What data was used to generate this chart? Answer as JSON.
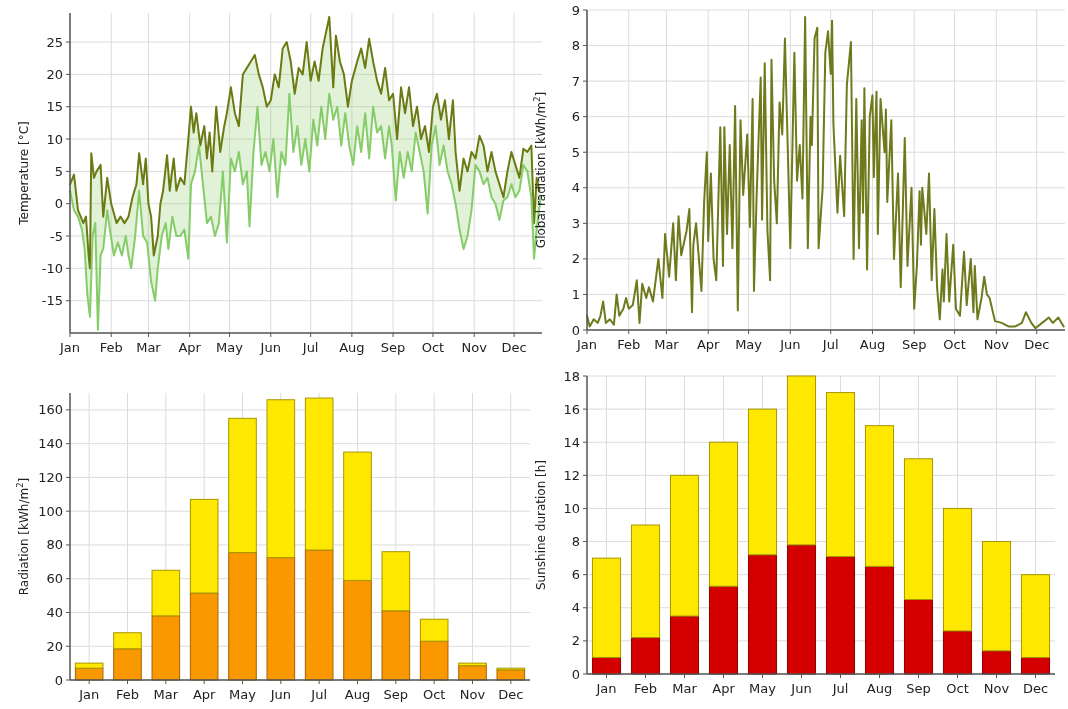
{
  "chart_data": [
    {
      "type": "line",
      "ylabel": "Temperature [°C]",
      "xlim": [
        "--01-01",
        "--12-22"
      ],
      "ylim": [
        -20,
        29.5
      ],
      "yticks": [
        -15,
        -10,
        -5,
        0,
        5,
        10,
        15,
        20,
        25
      ],
      "grid": true,
      "xticks": [
        {
          "value": "--01-01",
          "label": "Jan"
        },
        {
          "value": "--02-01",
          "label": "Feb"
        },
        {
          "value": "--03-01",
          "label": "Mar"
        },
        {
          "value": "--04-01",
          "label": "Apr"
        },
        {
          "value": "--05-01",
          "label": "May"
        },
        {
          "value": "--06-01",
          "label": "Jun"
        },
        {
          "value": "--07-01",
          "label": "Jul"
        },
        {
          "value": "--08-01",
          "label": "Aug"
        },
        {
          "value": "--09-01",
          "label": "Sep"
        },
        {
          "value": "--10-01",
          "label": "Oct"
        },
        {
          "value": "--11-01",
          "label": "Nov"
        },
        {
          "value": "--12-01",
          "label": "Dec"
        }
      ],
      "series": [
        {
          "color": "#6b7a12",
          "x": [
            "--01-01",
            "--01-04",
            "--01-07",
            "--01-11",
            "--01-13",
            "--01-15",
            "--01-16",
            "--01-17",
            "--01-19",
            "--01-21",
            "--01-24",
            "--01-26",
            "--01-29",
            "--02-01",
            "--02-05",
            "--02-08",
            "--02-11",
            "--02-14",
            "--02-17",
            "--02-20",
            "--02-22",
            "--02-25",
            "--02-27",
            "--03-01",
            "--03-03",
            "--03-05",
            "--03-08",
            "--03-10",
            "--03-12",
            "--03-15",
            "--03-17",
            "--03-20",
            "--03-22",
            "--03-25",
            "--03-28",
            "--03-31",
            "--04-02",
            "--04-04",
            "--04-06",
            "--04-09",
            "--04-12",
            "--04-14",
            "--04-16",
            "--04-18",
            "--04-21",
            "--04-24",
            "--04-27",
            "--04-29",
            "--05-02",
            "--05-05",
            "--05-08",
            "--05-11",
            "--05-14",
            "--05-17",
            "--05-20",
            "--05-23",
            "--05-26",
            "--05-29",
            "--06-01",
            "--06-04",
            "--06-07",
            "--06-10",
            "--06-13",
            "--06-16",
            "--06-19",
            "--06-22",
            "--06-25",
            "--06-28",
            "--07-01",
            "--07-04",
            "--07-07",
            "--07-10",
            "--07-15",
            "--07-18",
            "--07-20",
            "--07-23",
            "--07-26",
            "--07-29",
            "--08-01",
            "--08-05",
            "--08-08",
            "--08-11",
            "--08-14",
            "--08-17",
            "--08-20",
            "--08-23",
            "--08-26",
            "--08-29",
            "--09-01",
            "--09-04",
            "--09-07",
            "--09-10",
            "--09-13",
            "--09-16",
            "--09-19",
            "--09-22",
            "--09-25",
            "--09-28",
            "--10-01",
            "--10-04",
            "--10-07",
            "--10-10",
            "--10-13",
            "--10-16",
            "--10-18",
            "--10-21",
            "--10-24",
            "--10-27",
            "--10-30",
            "--11-02",
            "--11-05",
            "--11-08",
            "--11-11",
            "--11-14",
            "--11-17",
            "--11-20",
            "--11-23",
            "--11-26",
            "--11-29",
            "--12-02",
            "--12-05",
            "--12-08",
            "--12-11",
            "--12-14",
            "--12-16",
            "--12-18",
            "--12-20"
          ],
          "values": [
            3,
            4.5,
            -1,
            -3,
            -2,
            -8,
            -10,
            7.8,
            4,
            5,
            6,
            -2,
            4,
            0,
            -3,
            -2,
            -3,
            -2,
            1,
            3,
            7.8,
            3,
            7,
            0,
            -2,
            -8,
            -5,
            0,
            2,
            7.5,
            2,
            7,
            2,
            4,
            3,
            10,
            15,
            11,
            14,
            9,
            12,
            7,
            11,
            5,
            15,
            8,
            12,
            14,
            18,
            14,
            12,
            20,
            21,
            22,
            23,
            20,
            18,
            15,
            16,
            20,
            18,
            24,
            25,
            22,
            17,
            21,
            20,
            25,
            19,
            22,
            19,
            24,
            28.9,
            18,
            26,
            22,
            20,
            15,
            19,
            22,
            24,
            21,
            25.5,
            22,
            19,
            17,
            21,
            16,
            17,
            10,
            18,
            14,
            18,
            12,
            15,
            10,
            12,
            8,
            15,
            17,
            13,
            16,
            10,
            16,
            8,
            2,
            7,
            5,
            8,
            7,
            10.5,
            9,
            5,
            8,
            5,
            3,
            1,
            5,
            8,
            6,
            4,
            8.5,
            8,
            9,
            -3,
            4,
            2
          ]
        },
        {
          "color": "#86cc68",
          "x": [
            "--01-01",
            "--01-04",
            "--01-07",
            "--01-10",
            "--01-12",
            "--01-14",
            "--01-16",
            "--01-18",
            "--01-20",
            "--01-22",
            "--01-24",
            "--01-26",
            "--01-29",
            "--01-31",
            "--02-03",
            "--02-06",
            "--02-09",
            "--02-12",
            "--02-14",
            "--02-16",
            "--02-19",
            "--02-22",
            "--02-25",
            "--02-28",
            "--03-03",
            "--03-06",
            "--03-08",
            "--03-11",
            "--03-14",
            "--03-16",
            "--03-19",
            "--03-22",
            "--03-25",
            "--03-28",
            "--03-31",
            "--04-02",
            "--04-05",
            "--04-08",
            "--04-11",
            "--04-14",
            "--04-17",
            "--04-20",
            "--04-23",
            "--04-26",
            "--04-29",
            "--05-02",
            "--05-05",
            "--05-08",
            "--05-11",
            "--05-14",
            "--05-16",
            "--05-19",
            "--05-22",
            "--05-25",
            "--05-28",
            "--05-31",
            "--06-03",
            "--06-06",
            "--06-09",
            "--06-12",
            "--06-15",
            "--06-18",
            "--06-21",
            "--06-24",
            "--06-27",
            "--06-30",
            "--07-03",
            "--07-06",
            "--07-09",
            "--07-12",
            "--07-15",
            "--07-18",
            "--07-21",
            "--07-24",
            "--07-27",
            "--07-30",
            "--08-02",
            "--08-05",
            "--08-08",
            "--08-11",
            "--08-14",
            "--08-17",
            "--08-20",
            "--08-23",
            "--08-26",
            "--08-29",
            "--08-31",
            "--09-03",
            "--09-06",
            "--09-09",
            "--09-12",
            "--09-15",
            "--09-18",
            "--09-21",
            "--09-24",
            "--09-27",
            "--09-30",
            "--10-03",
            "--10-06",
            "--10-09",
            "--10-12",
            "--10-15",
            "--10-18",
            "--10-21",
            "--10-24",
            "--10-27",
            "--10-30",
            "--11-02",
            "--11-05",
            "--11-08",
            "--11-11",
            "--11-14",
            "--11-17",
            "--11-20",
            "--11-23",
            "--11-26",
            "--11-29",
            "--12-02",
            "--12-05",
            "--12-08",
            "--12-11",
            "--12-14",
            "--12-16",
            "--12-18",
            "--12-21"
          ],
          "values": [
            2,
            -1,
            -2,
            -4,
            -7,
            -14,
            -17.5,
            -5,
            -3,
            -19.5,
            -8,
            -7,
            -1,
            -4,
            -8,
            -6,
            -8,
            -5,
            -8,
            -10,
            -5,
            2,
            -5,
            -6,
            -12,
            -15,
            -10,
            -5,
            -3,
            -7,
            -2,
            -5,
            -5,
            -4,
            -8.5,
            3,
            5,
            9,
            3,
            -3,
            -2,
            -5,
            -3,
            5,
            -6,
            7,
            5,
            8,
            3,
            5,
            -3.5,
            8,
            15,
            6,
            8,
            5,
            10,
            1,
            8,
            6,
            17,
            8,
            12,
            6,
            10,
            5,
            13,
            9,
            15,
            10,
            17,
            13,
            15,
            9,
            14,
            9,
            6,
            12,
            8,
            14,
            7,
            15,
            11,
            12,
            7,
            12,
            9,
            0.5,
            8,
            4,
            8,
            5,
            11,
            8,
            5,
            -1.5,
            9,
            12,
            6,
            9,
            5,
            3,
            0,
            -4,
            -7,
            -5,
            -1,
            6,
            5,
            3,
            4,
            1,
            0,
            -2.5,
            0.5,
            1,
            3,
            1,
            2,
            6,
            5,
            1,
            -8.5,
            -4,
            1
          ],
          "lower": [
            2,
            -1,
            -2,
            -4,
            -7,
            -14,
            -17.5,
            -5,
            -3,
            -19.5,
            -8,
            -7,
            -1,
            -4,
            -8,
            -6,
            -8,
            -5,
            -8,
            -10,
            -5,
            2,
            -5,
            -6,
            -12,
            -15,
            -10,
            -5,
            -3,
            -7,
            -2,
            -5,
            -5,
            -4,
            -8.5,
            3,
            5,
            9,
            3,
            -3,
            -2,
            -5,
            -3,
            5,
            -6,
            7,
            5,
            8,
            3,
            5,
            -3.5,
            8,
            15,
            6,
            8,
            5,
            10,
            1,
            8,
            6,
            17,
            8,
            12,
            6,
            10,
            5,
            13,
            9,
            15,
            10,
            17,
            13,
            15,
            9,
            14,
            9,
            6,
            12,
            8,
            14,
            7,
            15,
            11,
            12,
            7,
            12,
            9,
            0.5,
            8,
            4,
            8,
            5,
            11,
            8,
            5,
            -1.5,
            9,
            12,
            6,
            9,
            5,
            3,
            0,
            -4,
            -7,
            -5,
            -1,
            6,
            5,
            3,
            4,
            1,
            0,
            -2.5,
            0.5,
            1,
            3,
            1,
            2,
            6,
            5,
            1,
            -8.5,
            -4,
            1
          ],
          "upper": [
            3,
            4.5,
            -1,
            -3,
            -2.5,
            -5,
            -10,
            6,
            4.5,
            5.5,
            6,
            -2,
            4,
            1,
            -1.5,
            -2.5,
            -2.5,
            -2.5,
            -2,
            0,
            2.5,
            7.8,
            3,
            3.5,
            -2,
            -6.5,
            -5,
            1,
            5.5,
            4.5,
            5,
            2,
            4,
            3,
            10,
            15,
            12.5,
            10.5,
            11,
            7,
            8,
            11.5,
            10,
            11,
            14,
            18,
            14,
            12,
            20,
            21,
            21.5,
            22.5,
            21,
            18.5,
            16,
            15.5,
            18.5,
            18.5,
            22,
            24.5,
            23,
            19,
            20,
            20.5,
            23.5,
            21,
            21,
            20,
            22.5,
            26,
            28.9,
            18,
            24.5,
            21.5,
            18.5,
            16.5,
            20,
            22,
            24,
            21,
            25.5,
            22,
            19,
            17,
            21,
            16,
            16.5,
            12.5,
            15.5,
            15.5,
            16.5,
            14,
            14,
            11.5,
            11.5,
            9.5,
            12.5,
            16.5,
            14.5,
            15,
            12,
            14,
            8,
            2,
            7,
            5,
            8,
            7,
            10.5,
            9,
            5,
            8,
            5,
            3,
            1,
            5,
            8,
            6,
            4,
            8.5,
            8,
            9,
            -3,
            4,
            2
          ]
        }
      ]
    },
    {
      "type": "line",
      "ylabel": "Global radiation [kWh/m$^{2}$]",
      "xlim": [
        "--01-01",
        "--12-22"
      ],
      "ylim": [
        0,
        9
      ],
      "yticks": [
        0,
        1,
        2,
        3,
        4,
        5,
        6,
        7,
        8,
        9
      ],
      "grid": true,
      "xticks": [
        {
          "value": "--01-01",
          "label": "Jan"
        },
        {
          "value": "--02-01",
          "label": "Feb"
        },
        {
          "value": "--03-01",
          "label": "Mar"
        },
        {
          "value": "--04-01",
          "label": "Apr"
        },
        {
          "value": "--05-01",
          "label": "May"
        },
        {
          "value": "--06-01",
          "label": "Jun"
        },
        {
          "value": "--07-01",
          "label": "Jul"
        },
        {
          "value": "--08-01",
          "label": "Aug"
        },
        {
          "value": "--09-01",
          "label": "Sep"
        },
        {
          "value": "--10-01",
          "label": "Oct"
        },
        {
          "value": "--11-01",
          "label": "Nov"
        },
        {
          "value": "--12-01",
          "label": "Dec"
        }
      ],
      "series": [
        {
          "color": "#6e7a1c",
          "x": [
            "--01-01",
            "--01-03",
            "--01-06",
            "--01-09",
            "--01-11",
            "--01-13",
            "--01-15",
            "--01-18",
            "--01-21",
            "--01-23",
            "--01-25",
            "--01-28",
            "--01-30",
            "--02-01",
            "--02-04",
            "--02-07",
            "--02-09",
            "--02-11",
            "--02-14",
            "--02-16",
            "--02-19",
            "--02-23",
            "--02-26",
            "--02-28",
            "--03-03",
            "--03-06",
            "--03-08",
            "--03-10",
            "--03-12",
            "--03-16",
            "--03-18",
            "--03-20",
            "--03-21",
            "--03-23",
            "--03-27",
            "--03-29",
            "--03-31",
            "--04-01",
            "--04-03",
            "--04-05",
            "--04-07",
            "--04-10",
            "--04-12",
            "--04-13",
            "--04-15",
            "--04-17",
            "--04-19",
            "--04-21",
            "--04-23",
            "--04-25",
            "--04-27",
            "--04-30",
            "--05-02",
            "--05-04",
            "--05-05",
            "--05-07",
            "--05-10",
            "--05-11",
            "--05-13",
            "--05-15",
            "--05-17",
            "--05-18",
            "--05-20",
            "--05-22",
            "--05-24",
            "--05-26",
            "--05-28",
            "--06-01",
            "--06-04",
            "--06-06",
            "--06-08",
            "--06-10",
            "--06-12",
            "--06-14",
            "--06-16",
            "--06-17",
            "--06-19",
            "--06-21",
            "--06-22",
            "--06-25",
            "--06-27",
            "--06-29",
            "--07-01",
            "--07-02",
            "--07-03",
            "--07-06",
            "--07-08",
            "--07-11",
            "--07-13",
            "--07-16",
            "--07-18",
            "--07-20",
            "--07-22",
            "--07-24",
            "--07-25",
            "--07-26",
            "--07-28",
            "--07-30",
            "--08-01",
            "--08-02",
            "--08-04",
            "--08-05",
            "--08-07",
            "--08-10",
            "--08-11",
            "--08-12",
            "--08-15",
            "--08-17",
            "--08-20",
            "--08-22",
            "--08-25",
            "--08-27",
            "--08-30",
            "--09-01",
            "--09-03",
            "--09-05",
            "--09-06",
            "--09-07",
            "--09-10",
            "--09-12",
            "--09-14",
            "--09-16",
            "--09-18",
            "--09-20",
            "--09-22",
            "--09-23",
            "--09-25",
            "--09-27",
            "--09-30",
            "--10-02",
            "--10-05",
            "--10-08",
            "--10-10",
            "--10-13",
            "--10-15",
            "--10-16",
            "--10-18",
            "--10-21",
            "--10-23",
            "--10-25",
            "--10-27",
            "--10-31",
            "--11-05",
            "--11-10",
            "--11-15",
            "--11-20",
            "--11-23",
            "--11-27",
            "--11-30",
            "--12-05",
            "--12-10",
            "--12-13",
            "--12-17",
            "--12-21"
          ],
          "values": [
            0.4,
            0.1,
            0.3,
            0.2,
            0.4,
            0.8,
            0.2,
            0.3,
            0.15,
            1.0,
            0.4,
            0.6,
            0.9,
            0.6,
            0.7,
            1.4,
            0.2,
            1.3,
            0.9,
            1.2,
            0.8,
            2.0,
            0.9,
            2.7,
            1.5,
            3.0,
            1.4,
            3.2,
            2.1,
            2.8,
            3.4,
            0.5,
            2.4,
            3.0,
            1.1,
            3.6,
            5.0,
            2.5,
            4.4,
            2.0,
            1.4,
            5.7,
            1.8,
            5.7,
            2.7,
            5.2,
            2.3,
            6.3,
            0.55,
            5.9,
            3.8,
            5.5,
            2.9,
            6.5,
            1.1,
            3.8,
            7.1,
            3.1,
            7.5,
            2.8,
            1.4,
            7.6,
            4.2,
            3.0,
            6.4,
            5.5,
            8.2,
            2.3,
            7.8,
            4.2,
            5.2,
            3.7,
            8.8,
            2.3,
            6.0,
            5.2,
            8.2,
            8.5,
            2.3,
            4.0,
            7.8,
            8.4,
            7.2,
            8.7,
            5.8,
            3.3,
            4.9,
            3.2,
            6.9,
            8.1,
            2.0,
            6.5,
            2.3,
            5.9,
            3.3,
            6.8,
            1.7,
            6.0,
            6.6,
            4.3,
            6.7,
            2.7,
            6.5,
            5.0,
            6.2,
            3.6,
            5.9,
            2.0,
            4.4,
            1.2,
            5.4,
            1.8,
            4.0,
            0.6,
            1.8,
            3.9,
            2.4,
            4.0,
            2.7,
            4.4,
            1.4,
            3.4,
            1.2,
            0.3,
            1.7,
            0.8,
            2.7,
            0.8,
            2.4,
            0.6,
            0.4,
            2.2,
            0.7,
            2.0,
            0.5,
            1.8,
            0.3,
            0.9,
            1.5,
            1.0,
            0.9,
            0.25,
            0.2,
            0.1,
            0.1,
            0.2,
            0.5,
            0.2,
            0.05,
            0.2,
            0.35,
            0.2,
            0.35,
            0.1
          ]
        }
      ]
    },
    {
      "type": "bar",
      "stacked": true,
      "ylabel": "Radiation [kWh/m$^{2}$]",
      "categories": [
        "Jan",
        "Feb",
        "Mar",
        "Apr",
        "May",
        "Jun",
        "Jul",
        "Aug",
        "Sep",
        "Oct",
        "Nov",
        "Dec"
      ],
      "ylim": [
        0,
        170
      ],
      "yticks": [
        0,
        20,
        40,
        60,
        80,
        100,
        120,
        140,
        160
      ],
      "grid": true,
      "series": [
        {
          "color": "#fa9800",
          "values": [
            7,
            18.5,
            38,
            51.5,
            75.5,
            72.5,
            77,
            59,
            41,
            23,
            8.5,
            6
          ]
        },
        {
          "color": "#ffe800",
          "values": [
            3,
            9.5,
            27,
            55.5,
            79.5,
            93.5,
            90,
            76,
            35,
            13,
            1.5,
            1
          ]
        }
      ]
    },
    {
      "type": "bar",
      "stacked": true,
      "ylabel": "Sunshine duration [h]",
      "categories": [
        "Jan",
        "Feb",
        "Mar",
        "Apr",
        "May",
        "Jun",
        "Jul",
        "Aug",
        "Sep",
        "Oct",
        "Nov",
        "Dec"
      ],
      "ylim": [
        0,
        18
      ],
      "yticks": [
        0,
        2,
        4,
        6,
        8,
        10,
        12,
        14,
        16,
        18
      ],
      "grid": true,
      "series": [
        {
          "color": "#d40000",
          "values": [
            1.0,
            2.2,
            3.5,
            5.3,
            7.2,
            7.8,
            7.1,
            6.5,
            4.5,
            2.6,
            1.4,
            1.0
          ]
        },
        {
          "color": "#ffe800",
          "values": [
            6.0,
            6.8,
            8.5,
            8.7,
            8.8,
            10.2,
            9.9,
            8.5,
            8.5,
            7.4,
            6.6,
            5.0
          ]
        }
      ]
    }
  ]
}
